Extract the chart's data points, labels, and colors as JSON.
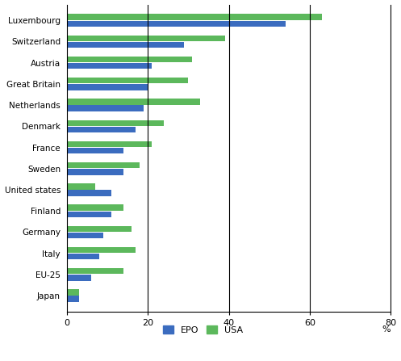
{
  "categories": [
    "Luxembourg",
    "Switzerland",
    "Austria",
    "Great Britain",
    "Netherlands",
    "Denmark",
    "France",
    "Sweden",
    "United states",
    "Finland",
    "Germany",
    "Italy",
    "EU-25",
    "Japan"
  ],
  "epo": [
    54,
    29,
    21,
    20,
    19,
    17,
    14,
    14,
    11,
    11,
    9,
    8,
    6,
    3
  ],
  "usa": [
    63,
    39,
    31,
    30,
    33,
    24,
    21,
    18,
    7,
    14,
    16,
    17,
    14,
    3
  ],
  "epo_color": "#3b6cbf",
  "usa_color": "#5cb85c",
  "xlim": [
    0,
    80
  ],
  "xticks": [
    0,
    20,
    40,
    60,
    80
  ],
  "xlabel_pct": "%",
  "bar_height": 0.28,
  "bar_gap": 0.03,
  "legend_labels": [
    "EPO",
    "USA"
  ],
  "background_color": "#ffffff",
  "grid_color": "#000000",
  "vlines": [
    20,
    40,
    60
  ]
}
